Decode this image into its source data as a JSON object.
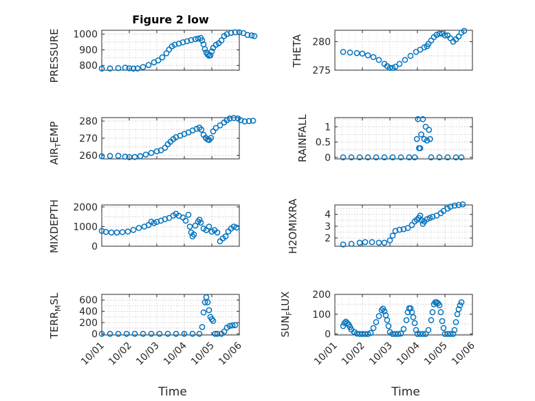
{
  "chart_data": [
    {
      "type": "scatter",
      "title": "Figure 2 low",
      "ylabel": "PRESSURE",
      "ylim": [
        770,
        1025
      ],
      "yticks": [
        800,
        900,
        1000
      ],
      "ytick_labels": [
        "800",
        "900",
        "1000"
      ],
      "points": [
        [
          0,
          780
        ],
        [
          0.3,
          781
        ],
        [
          0.6,
          783
        ],
        [
          0.85,
          786
        ],
        [
          1.0,
          782
        ],
        [
          1.15,
          780
        ],
        [
          1.3,
          781
        ],
        [
          1.5,
          790
        ],
        [
          1.7,
          803
        ],
        [
          1.9,
          820
        ],
        [
          2.05,
          832
        ],
        [
          2.2,
          852
        ],
        [
          2.35,
          878
        ],
        [
          2.45,
          902
        ],
        [
          2.55,
          922
        ],
        [
          2.65,
          933
        ],
        [
          2.8,
          940
        ],
        [
          2.95,
          948
        ],
        [
          3.1,
          955
        ],
        [
          3.25,
          962
        ],
        [
          3.4,
          968
        ],
        [
          3.5,
          972
        ],
        [
          3.6,
          976
        ],
        [
          3.65,
          960
        ],
        [
          3.7,
          935
        ],
        [
          3.75,
          905
        ],
        [
          3.8,
          883
        ],
        [
          3.85,
          870
        ],
        [
          3.9,
          862
        ],
        [
          3.95,
          865
        ],
        [
          4.0,
          890
        ],
        [
          4.05,
          912
        ],
        [
          4.15,
          932
        ],
        [
          4.25,
          942
        ],
        [
          4.35,
          960
        ],
        [
          4.45,
          988
        ],
        [
          4.55,
          1000
        ],
        [
          4.7,
          1008
        ],
        [
          4.85,
          1012
        ],
        [
          5.0,
          1012
        ],
        [
          5.15,
          1007
        ],
        [
          5.3,
          995
        ],
        [
          5.45,
          992
        ],
        [
          5.55,
          988
        ]
      ]
    },
    {
      "type": "scatter",
      "title": "",
      "ylabel": "THETA",
      "ylim": [
        275,
        282
      ],
      "yticks": [
        275,
        280
      ],
      "ytick_labels": [
        "275",
        "280"
      ],
      "points": [
        [
          0.3,
          278.2
        ],
        [
          0.55,
          278.1
        ],
        [
          0.8,
          278.0
        ],
        [
          1.0,
          277.9
        ],
        [
          1.2,
          277.6
        ],
        [
          1.4,
          277.3
        ],
        [
          1.6,
          276.8
        ],
        [
          1.8,
          276.1
        ],
        [
          1.9,
          275.7
        ],
        [
          2.0,
          275.4
        ],
        [
          2.1,
          275.4
        ],
        [
          2.2,
          275.6
        ],
        [
          2.35,
          276.1
        ],
        [
          2.55,
          276.8
        ],
        [
          2.75,
          277.5
        ],
        [
          2.95,
          278.2
        ],
        [
          3.1,
          278.6
        ],
        [
          3.25,
          279.0
        ],
        [
          3.35,
          279.2
        ],
        [
          3.4,
          279.6
        ],
        [
          3.5,
          280.2
        ],
        [
          3.6,
          280.8
        ],
        [
          3.7,
          281.2
        ],
        [
          3.8,
          281.4
        ],
        [
          3.9,
          281.4
        ],
        [
          4.0,
          281.1
        ],
        [
          4.1,
          281.1
        ],
        [
          4.2,
          280.6
        ],
        [
          4.3,
          280.0
        ],
        [
          4.4,
          280.4
        ],
        [
          4.5,
          280.9
        ],
        [
          4.6,
          281.6
        ],
        [
          4.7,
          281.9
        ]
      ]
    },
    {
      "type": "scatter",
      "title": "",
      "ylabel": "AIR_TEMP",
      "ylim": [
        258,
        282
      ],
      "yticks": [
        260,
        270,
        280
      ],
      "ytick_labels": [
        "260",
        "270",
        "280"
      ],
      "points": [
        [
          0,
          259.5
        ],
        [
          0.3,
          259.7
        ],
        [
          0.6,
          259.8
        ],
        [
          0.85,
          259.3
        ],
        [
          1.0,
          259.0
        ],
        [
          1.2,
          259.1
        ],
        [
          1.4,
          259.6
        ],
        [
          1.6,
          260.5
        ],
        [
          1.8,
          261.5
        ],
        [
          2.0,
          262.4
        ],
        [
          2.15,
          263.0
        ],
        [
          2.3,
          264.5
        ],
        [
          2.4,
          266.5
        ],
        [
          2.5,
          268.0
        ],
        [
          2.6,
          269.5
        ],
        [
          2.7,
          270.6
        ],
        [
          2.85,
          271.5
        ],
        [
          3.0,
          272.5
        ],
        [
          3.15,
          273.4
        ],
        [
          3.3,
          274.5
        ],
        [
          3.45,
          275.5
        ],
        [
          3.55,
          276.2
        ],
        [
          3.62,
          275.0
        ],
        [
          3.7,
          272.0
        ],
        [
          3.78,
          270.2
        ],
        [
          3.85,
          269.3
        ],
        [
          3.9,
          269.0
        ],
        [
          3.97,
          270.2
        ],
        [
          4.05,
          274.0
        ],
        [
          4.15,
          276.0
        ],
        [
          4.3,
          277.5
        ],
        [
          4.45,
          279.2
        ],
        [
          4.55,
          280.5
        ],
        [
          4.65,
          281.5
        ],
        [
          4.8,
          281.8
        ],
        [
          4.95,
          281.5
        ],
        [
          5.05,
          280.5
        ],
        [
          5.2,
          279.8
        ],
        [
          5.35,
          280.0
        ],
        [
          5.5,
          280.2
        ]
      ]
    },
    {
      "type": "scatter",
      "title": "",
      "ylabel": "RAINFALL",
      "ylim": [
        -0.05,
        1.3
      ],
      "yticks": [
        0,
        0.5,
        1
      ],
      "ytick_labels": [
        "0",
        "0.5",
        "1"
      ],
      "points": [
        [
          0.3,
          0
        ],
        [
          0.6,
          0
        ],
        [
          0.9,
          0
        ],
        [
          1.2,
          0
        ],
        [
          1.5,
          0
        ],
        [
          1.8,
          0
        ],
        [
          2.1,
          0
        ],
        [
          2.4,
          0
        ],
        [
          2.7,
          0
        ],
        [
          2.9,
          0
        ],
        [
          2.98,
          0.6
        ],
        [
          3.02,
          1.25
        ],
        [
          3.06,
          0.3
        ],
        [
          3.1,
          0.3
        ],
        [
          3.14,
          0.75
        ],
        [
          3.2,
          1.25
        ],
        [
          3.25,
          0.6
        ],
        [
          3.3,
          1.0
        ],
        [
          3.35,
          0.55
        ],
        [
          3.42,
          0.9
        ],
        [
          3.46,
          0.6
        ],
        [
          3.5,
          0
        ],
        [
          3.8,
          0
        ],
        [
          4.1,
          0
        ],
        [
          4.4,
          0
        ],
        [
          4.6,
          0
        ]
      ]
    },
    {
      "type": "scatter",
      "title": "",
      "ylabel": "MIXDEPTH",
      "ylim": [
        0,
        2100
      ],
      "yticks": [
        0,
        1000,
        2000
      ],
      "ytick_labels": [
        "0",
        "1000",
        "2000"
      ],
      "points": [
        [
          0,
          780
        ],
        [
          0.15,
          730
        ],
        [
          0.35,
          700
        ],
        [
          0.55,
          700
        ],
        [
          0.75,
          720
        ],
        [
          0.95,
          750
        ],
        [
          1.15,
          830
        ],
        [
          1.35,
          930
        ],
        [
          1.55,
          1000
        ],
        [
          1.7,
          1080
        ],
        [
          1.8,
          1250
        ],
        [
          1.9,
          1180
        ],
        [
          2.0,
          1240
        ],
        [
          2.15,
          1300
        ],
        [
          2.3,
          1380
        ],
        [
          2.45,
          1440
        ],
        [
          2.6,
          1560
        ],
        [
          2.7,
          1650
        ],
        [
          2.8,
          1550
        ],
        [
          2.95,
          1460
        ],
        [
          3.05,
          1300
        ],
        [
          3.15,
          1600
        ],
        [
          3.2,
          1000
        ],
        [
          3.25,
          700
        ],
        [
          3.3,
          500
        ],
        [
          3.35,
          600
        ],
        [
          3.4,
          1050
        ],
        [
          3.5,
          1250
        ],
        [
          3.55,
          1350
        ],
        [
          3.6,
          1200
        ],
        [
          3.7,
          900
        ],
        [
          3.8,
          820
        ],
        [
          3.9,
          1000
        ],
        [
          4.0,
          740
        ],
        [
          4.1,
          820
        ],
        [
          4.2,
          700
        ],
        [
          4.3,
          250
        ],
        [
          4.4,
          400
        ],
        [
          4.5,
          500
        ],
        [
          4.6,
          750
        ],
        [
          4.7,
          900
        ],
        [
          4.8,
          1000
        ],
        [
          4.9,
          950
        ]
      ]
    },
    {
      "type": "scatter",
      "title": "",
      "ylabel": "H2OMIXRA",
      "ylim": [
        1.3,
        4.8
      ],
      "yticks": [
        2,
        3,
        4
      ],
      "ytick_labels": [
        "2",
        "3",
        "4"
      ],
      "points": [
        [
          0.3,
          1.45
        ],
        [
          0.6,
          1.5
        ],
        [
          0.9,
          1.6
        ],
        [
          1.1,
          1.65
        ],
        [
          1.35,
          1.65
        ],
        [
          1.6,
          1.6
        ],
        [
          1.8,
          1.6
        ],
        [
          2.0,
          1.8
        ],
        [
          2.1,
          2.2
        ],
        [
          2.2,
          2.6
        ],
        [
          2.35,
          2.7
        ],
        [
          2.5,
          2.75
        ],
        [
          2.65,
          2.85
        ],
        [
          2.8,
          3.1
        ],
        [
          2.9,
          3.4
        ],
        [
          2.98,
          3.55
        ],
        [
          3.05,
          3.7
        ],
        [
          3.1,
          3.9
        ],
        [
          3.15,
          3.5
        ],
        [
          3.2,
          3.2
        ],
        [
          3.25,
          3.4
        ],
        [
          3.35,
          3.6
        ],
        [
          3.45,
          3.7
        ],
        [
          3.55,
          3.8
        ],
        [
          3.7,
          3.9
        ],
        [
          3.85,
          4.1
        ],
        [
          3.95,
          4.3
        ],
        [
          4.1,
          4.5
        ],
        [
          4.2,
          4.65
        ],
        [
          4.35,
          4.75
        ],
        [
          4.5,
          4.8
        ],
        [
          4.65,
          4.85
        ]
      ]
    },
    {
      "type": "scatter",
      "title": "",
      "ylabel": "TERR_MSL",
      "ylim": [
        -20,
        700
      ],
      "yticks": [
        0,
        200,
        400,
        600
      ],
      "ytick_labels": [
        "0",
        "200",
        "400",
        "600"
      ],
      "points": [
        [
          0,
          0
        ],
        [
          0.3,
          0
        ],
        [
          0.6,
          0
        ],
        [
          0.9,
          0
        ],
        [
          1.2,
          0
        ],
        [
          1.5,
          0
        ],
        [
          1.8,
          0
        ],
        [
          2.1,
          0
        ],
        [
          2.4,
          0
        ],
        [
          2.7,
          0
        ],
        [
          3.0,
          0
        ],
        [
          3.3,
          0
        ],
        [
          3.55,
          0
        ],
        [
          3.65,
          120
        ],
        [
          3.7,
          380
        ],
        [
          3.75,
          560
        ],
        [
          3.8,
          650
        ],
        [
          3.85,
          560
        ],
        [
          3.9,
          420
        ],
        [
          3.95,
          300
        ],
        [
          4.0,
          260
        ],
        [
          4.05,
          230
        ],
        [
          4.12,
          0
        ],
        [
          4.2,
          0
        ],
        [
          4.35,
          0
        ],
        [
          4.45,
          40
        ],
        [
          4.55,
          110
        ],
        [
          4.65,
          140
        ],
        [
          4.75,
          150
        ],
        [
          4.85,
          155
        ]
      ]
    },
    {
      "type": "scatter",
      "title": "",
      "ylabel": "SUN_FLUX",
      "ylim": [
        -5,
        200
      ],
      "yticks": [
        0,
        100,
        200
      ],
      "ytick_labels": [
        "0",
        "100",
        "200"
      ],
      "points": [
        [
          0.3,
          40
        ],
        [
          0.35,
          55
        ],
        [
          0.4,
          62
        ],
        [
          0.45,
          55
        ],
        [
          0.5,
          48
        ],
        [
          0.55,
          35
        ],
        [
          0.6,
          22
        ],
        [
          0.7,
          10
        ],
        [
          0.8,
          2
        ],
        [
          0.9,
          0
        ],
        [
          1.0,
          0
        ],
        [
          1.1,
          0
        ],
        [
          1.2,
          0
        ],
        [
          1.3,
          5
        ],
        [
          1.4,
          30
        ],
        [
          1.5,
          60
        ],
        [
          1.6,
          90
        ],
        [
          1.7,
          120
        ],
        [
          1.75,
          128
        ],
        [
          1.8,
          115
        ],
        [
          1.85,
          95
        ],
        [
          1.9,
          70
        ],
        [
          1.95,
          40
        ],
        [
          2.0,
          10
        ],
        [
          2.1,
          0
        ],
        [
          2.2,
          0
        ],
        [
          2.3,
          0
        ],
        [
          2.4,
          2
        ],
        [
          2.5,
          25
        ],
        [
          2.6,
          70
        ],
        [
          2.65,
          110
        ],
        [
          2.7,
          130
        ],
        [
          2.75,
          130
        ],
        [
          2.8,
          110
        ],
        [
          2.85,
          85
        ],
        [
          2.9,
          55
        ],
        [
          2.95,
          20
        ],
        [
          3.0,
          0
        ],
        [
          3.1,
          0
        ],
        [
          3.2,
          0
        ],
        [
          3.3,
          0
        ],
        [
          3.4,
          20
        ],
        [
          3.5,
          70
        ],
        [
          3.55,
          110
        ],
        [
          3.6,
          150
        ],
        [
          3.65,
          160
        ],
        [
          3.7,
          160
        ],
        [
          3.75,
          155
        ],
        [
          3.8,
          145
        ],
        [
          3.85,
          110
        ],
        [
          3.9,
          65
        ],
        [
          3.95,
          30
        ],
        [
          4.0,
          0
        ],
        [
          4.1,
          0
        ],
        [
          4.2,
          0
        ],
        [
          4.3,
          0
        ],
        [
          4.35,
          20
        ],
        [
          4.4,
          60
        ],
        [
          4.45,
          100
        ],
        [
          4.5,
          125
        ],
        [
          4.55,
          145
        ],
        [
          4.6,
          160
        ]
      ]
    }
  ],
  "xaxis": {
    "label": "Time",
    "ticks": [
      0,
      1,
      2,
      3,
      4,
      5
    ],
    "tick_labels": [
      "10/01",
      "10/02",
      "10/03",
      "10/04",
      "10/05",
      "10/06"
    ]
  },
  "colors": {
    "marker": "#0072bd",
    "axis": "#262626",
    "grid": "#c8c8c8"
  }
}
